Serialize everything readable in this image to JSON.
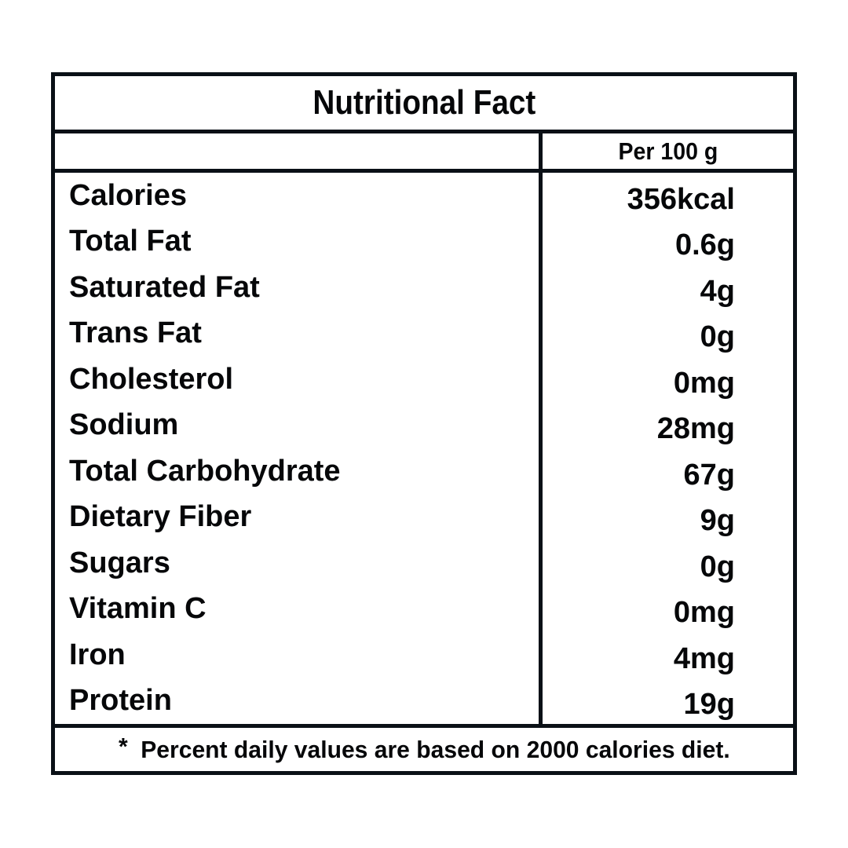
{
  "label": {
    "title": "Nutritional Fact",
    "column_header": "Per 100 g",
    "rows": [
      {
        "label": "Calories",
        "value": "356kcal"
      },
      {
        "label": "Total Fat",
        "value": "0.6g"
      },
      {
        "label": "Saturated Fat",
        "value": "4g"
      },
      {
        "label": "Trans Fat",
        "value": "0g"
      },
      {
        "label": "Cholesterol",
        "value": "0mg"
      },
      {
        "label": "Sodium",
        "value": "28mg"
      },
      {
        "label": "Total Carbohydrate",
        "value": "67g"
      },
      {
        "label": "Dietary Fiber",
        "value": "9g"
      },
      {
        "label": "Sugars",
        "value": "0g"
      },
      {
        "label": "Vitamin C",
        "value": "0mg"
      },
      {
        "label": "Iron",
        "value": "4mg"
      },
      {
        "label": "Protein",
        "value": "19g"
      }
    ],
    "footnote_marker": "*",
    "footnote": "Percent daily values are based on 2000 calories diet."
  },
  "colors": {
    "ink": "#0a1016",
    "bg": "#ffffff",
    "text": "#060709"
  }
}
